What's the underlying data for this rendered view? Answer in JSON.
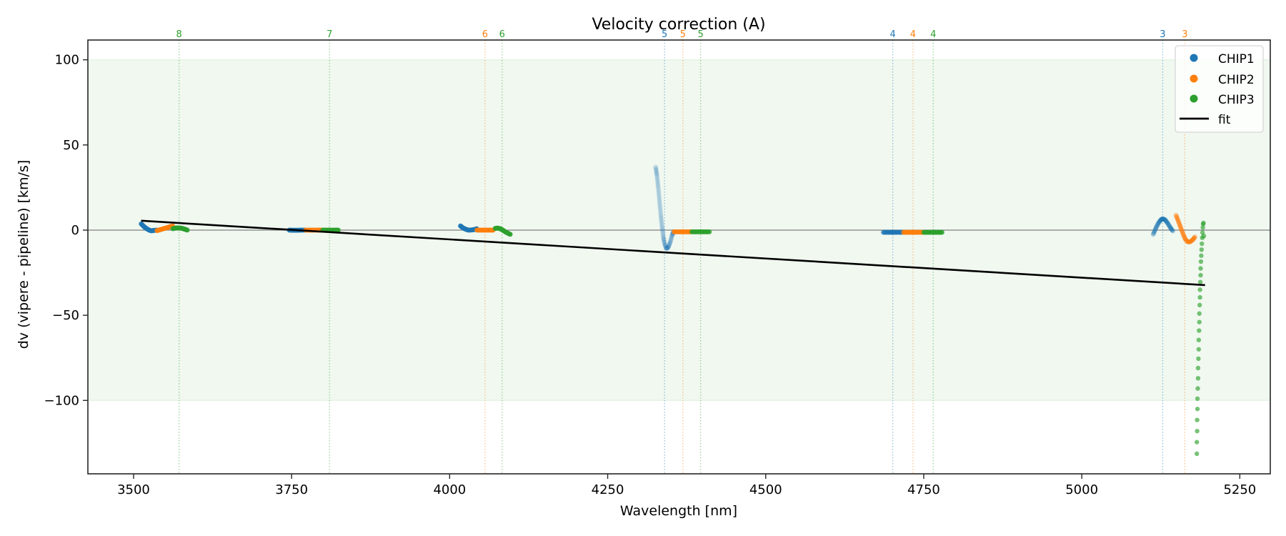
{
  "chart_data": {
    "type": "scatter",
    "title": "Velocity correction (A)",
    "xlabel": "Wavelength [nm]",
    "ylabel": "dv (vipere - pipeline) [km/s]",
    "xlim": [
      3427.7,
      5298.2
    ],
    "ylim": [
      -143.1,
      111.6
    ],
    "xticks": [
      3500,
      3750,
      4000,
      4250,
      4500,
      4750,
      5000,
      5250
    ],
    "xtick_labels": [
      "3500",
      "3750",
      "4000",
      "4250",
      "4500",
      "4750",
      "5000",
      "5250"
    ],
    "yticks": [
      100,
      50,
      0,
      -50,
      -100
    ],
    "ytick_labels": [
      "100",
      "50",
      "0",
      "−50",
      "−100"
    ],
    "grid": false,
    "band": {
      "ymin": -100,
      "ymax": 100,
      "color": "#2ca02c"
    },
    "zero_line": 0,
    "legend": {
      "placement": "upper right",
      "entries": [
        {
          "label": "CHIP1",
          "color": "#1f77b4",
          "marker": "dot"
        },
        {
          "label": "CHIP2",
          "color": "#ff7f0e",
          "marker": "dot"
        },
        {
          "label": "CHIP3",
          "color": "#2ca02c",
          "marker": "dot"
        },
        {
          "label": "fit",
          "color": "#000000",
          "marker": "line"
        }
      ]
    },
    "order_lines": [
      {
        "label": "8",
        "x": 3572,
        "chip": "CHIP3",
        "color": "#2ca02c"
      },
      {
        "label": "7",
        "x": 3810,
        "chip": "CHIP3",
        "color": "#2ca02c"
      },
      {
        "label": "6",
        "x": 4056,
        "chip": "CHIP2",
        "color": "#ff7f0e"
      },
      {
        "label": "6",
        "x": 4083,
        "chip": "CHIP3",
        "color": "#2ca02c"
      },
      {
        "label": "5",
        "x": 4340,
        "chip": "CHIP1",
        "color": "#1f77b4"
      },
      {
        "label": "5",
        "x": 4369,
        "chip": "CHIP2",
        "color": "#ff7f0e"
      },
      {
        "label": "5",
        "x": 4397,
        "chip": "CHIP3",
        "color": "#2ca02c"
      },
      {
        "label": "4",
        "x": 4701,
        "chip": "CHIP1",
        "color": "#1f77b4"
      },
      {
        "label": "4",
        "x": 4733,
        "chip": "CHIP2",
        "color": "#ff7f0e"
      },
      {
        "label": "4",
        "x": 4765,
        "chip": "CHIP3",
        "color": "#2ca02c"
      },
      {
        "label": "3",
        "x": 5128,
        "chip": "CHIP1",
        "color": "#1f77b4"
      },
      {
        "label": "3",
        "x": 5163,
        "chip": "CHIP2",
        "color": "#ff7f0e"
      }
    ],
    "fit": {
      "label": "fit",
      "x": [
        3512,
        5195
      ],
      "y": [
        5.5,
        -32.3
      ],
      "color": "#000000"
    },
    "series": [
      {
        "name": "CHIP1",
        "color": "#1f77b4",
        "segments": [
          {
            "order": 8,
            "alpha": 1.0,
            "x": [
              3512,
              3516,
              3520,
              3524,
              3528,
              3532,
              3537
            ],
            "y": [
              3.7,
              2.2,
              1.0,
              0.1,
              -0.4,
              -0.2,
              0.0
            ]
          },
          {
            "order": 7,
            "alpha": 1.0,
            "x": [
              3746,
              3752,
              3759,
              3765,
              3772
            ],
            "y": [
              0.0,
              -0.1,
              -0.1,
              0.0,
              0.0
            ]
          },
          {
            "order": 6,
            "alpha": 1.0,
            "x": [
              4017,
              4021,
              4026,
              4030,
              4035,
              4039,
              4043
            ],
            "y": [
              2.5,
              1.3,
              0.4,
              0.0,
              0.1,
              0.3,
              0.8
            ]
          },
          {
            "order": 5,
            "alpha": 0.25,
            "x": [
              4326,
              4328,
              4330,
              4332,
              4334,
              4336,
              4338,
              4340,
              4343,
              4346,
              4349,
              4352,
              4354
            ],
            "y": [
              37,
              32,
              25,
              17,
              9,
              2,
              -4,
              -8,
              -11,
              -10,
              -7,
              -3,
              -1
            ]
          },
          {
            "order": 4,
            "alpha": 0.8,
            "x": [
              4686,
              4694,
              4701,
              4708,
              4716
            ],
            "y": [
              -1.3,
              -1.3,
              -1.3,
              -1.3,
              -1.3
            ]
          },
          {
            "order": 3,
            "alpha": 0.4,
            "x": [
              5113,
              5117,
              5121,
              5125,
              5128,
              5132,
              5136,
              5140,
              5144
            ],
            "y": [
              -2.5,
              1.0,
              4.0,
              6.0,
              6.7,
              6.0,
              4.0,
              1.5,
              -0.5
            ]
          }
        ]
      },
      {
        "name": "CHIP2",
        "color": "#ff7f0e",
        "segments": [
          {
            "order": 8,
            "alpha": 1.0,
            "x": [
              3537,
              3542,
              3547,
              3552,
              3557,
              3562
            ],
            "y": [
              -0.3,
              0.2,
              0.8,
              1.3,
              1.9,
              2.5
            ]
          },
          {
            "order": 7,
            "alpha": 1.0,
            "x": [
              3772,
              3779,
              3786,
              3793,
              3799
            ],
            "y": [
              0.0,
              0.0,
              0.0,
              0.0,
              0.0
            ]
          },
          {
            "order": 6,
            "alpha": 1.0,
            "x": [
              4043,
              4050,
              4056,
              4063,
              4069
            ],
            "y": [
              0.0,
              0.0,
              0.0,
              0.0,
              0.0
            ]
          },
          {
            "order": 5,
            "alpha": 1.0,
            "x": [
              4355,
              4362,
              4369,
              4376,
              4383
            ],
            "y": [
              -1.0,
              -1.0,
              -1.0,
              -1.0,
              -1.0
            ]
          },
          {
            "order": 4,
            "alpha": 1.0,
            "x": [
              4718,
              4726,
              4733,
              4741,
              4749
            ],
            "y": [
              -1.3,
              -1.3,
              -1.3,
              -1.3,
              -1.3
            ]
          },
          {
            "order": 3,
            "alpha": 0.4,
            "x": [
              5149,
              5152,
              5155,
              5158,
              5161,
              5164,
              5168,
              5172,
              5176,
              5179
            ],
            "y": [
              8.8,
              6.0,
              3.0,
              0.0,
              -3.0,
              -5.5,
              -7.0,
              -6.8,
              -5.5,
              -4.0
            ]
          }
        ]
      },
      {
        "name": "CHIP3",
        "color": "#2ca02c",
        "segments": [
          {
            "order": 8,
            "alpha": 0.9,
            "x": [
              3562,
              3566,
              3570,
              3574,
              3578,
              3582,
              3585
            ],
            "y": [
              0.8,
              1.2,
              1.3,
              1.2,
              0.9,
              0.4,
              0.0
            ]
          },
          {
            "order": 7,
            "alpha": 0.9,
            "x": [
              3799,
              3805,
              3811,
              3818,
              3824
            ],
            "y": [
              0.0,
              0.0,
              0.0,
              0.0,
              0.0
            ]
          },
          {
            "order": 6,
            "alpha": 0.9,
            "x": [
              4072,
              4076,
              4080,
              4084,
              4088,
              4092,
              4096
            ],
            "y": [
              1.0,
              1.2,
              0.8,
              0.0,
              -1.0,
              -1.8,
              -2.5
            ]
          },
          {
            "order": 5,
            "alpha": 0.9,
            "x": [
              4383,
              4390,
              4397,
              4404,
              4411
            ],
            "y": [
              -1.0,
              -1.0,
              -1.0,
              -1.0,
              -1.0
            ]
          },
          {
            "order": 4,
            "alpha": 0.9,
            "x": [
              4750,
              4757,
              4765,
              4772,
              4779
            ],
            "y": [
              -1.3,
              -1.3,
              -1.3,
              -1.3,
              -1.3
            ]
          },
          {
            "order": 3,
            "alpha": 0.85,
            "x": [
              5182,
              5182,
              5182.5,
              5182.5,
              5183,
              5183,
              5183.5,
              5184,
              5184,
              5184.5,
              5185,
              5185,
              5185.5,
              5186,
              5186,
              5186.5,
              5187,
              5187,
              5187.5,
              5188,
              5188,
              5188.5,
              5189,
              5189.5,
              5190,
              5190.5,
              5191,
              5191.5,
              5192,
              5192.5,
              5193
            ],
            "y": [
              -131.3,
              -124.5,
              -118,
              -111.5,
              -105,
              -99,
              -93,
              -87,
              -81,
              -75.5,
              -70,
              -64.5,
              -59,
              -54,
              -49,
              -44,
              -39.5,
              -35,
              -30.5,
              -26.5,
              -22.5,
              -18.5,
              -15,
              -11.5,
              -8,
              -4.5,
              -1.5,
              1.5,
              3.5,
              4.2,
              -3.5
            ]
          }
        ]
      }
    ]
  }
}
